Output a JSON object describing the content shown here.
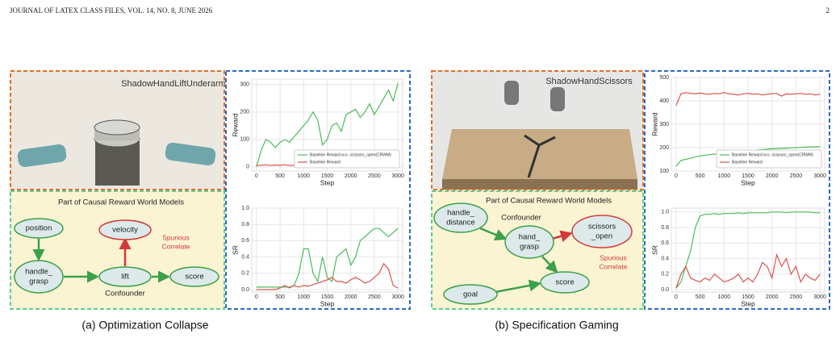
{
  "header": {
    "left": "JOURNAL OF LATEX CLASS FILES, VOL. 14, NO. 8, JUNE 2026",
    "page": "2"
  },
  "panels": [
    {
      "caption": "(a) Optimization Collapse",
      "image_title": "ShadowHandLiftUnderarm",
      "diagram": {
        "title": "Part of Causal Reward World Models",
        "nodes": [
          {
            "label": [
              "position"
            ]
          },
          {
            "label": [
              "velocity"
            ]
          },
          {
            "label": [
              "handle_",
              "grasp"
            ]
          },
          {
            "label": [
              "lift"
            ]
          },
          {
            "label": [
              "score"
            ]
          }
        ],
        "confounder": "Confounder",
        "spurious": [
          "Spurious",
          "Correlate"
        ]
      },
      "charts": [
        {
          "type": "line",
          "ylabel": "Reward",
          "xlabel": "Step",
          "grid": true,
          "legend": "lower right",
          "xlim": [
            -100,
            3100
          ],
          "ylim": [
            -15,
            320
          ],
          "xticks": [
            0,
            500,
            1000,
            1500,
            2000,
            2500,
            3000
          ],
          "yticks": [
            0,
            100,
            200,
            300
          ],
          "x": [
            0,
            100,
            200,
            300,
            400,
            500,
            600,
            700,
            800,
            900,
            1000,
            1100,
            1200,
            1300,
            1400,
            1500,
            1600,
            1700,
            1800,
            1900,
            2000,
            2100,
            2200,
            2300,
            2400,
            2500,
            2600,
            2700,
            2800,
            2900,
            3000
          ],
          "series": [
            {
              "name": "Baseline Reward w.o. scissors_open(CRWM)",
              "color": "#4cbb5a",
              "values": [
                0,
                60,
                100,
                90,
                70,
                90,
                100,
                90,
                110,
                130,
                150,
                170,
                200,
                170,
                80,
                100,
                150,
                160,
                130,
                190,
                200,
                210,
                180,
                200,
                230,
                190,
                220,
                250,
                280,
                240,
                305
              ]
            },
            {
              "name": "Baseline Reward",
              "color": "#d9534f",
              "values": [
                5,
                6,
                8,
                5,
                7,
                6,
                8,
                5,
                6,
                7,
                6,
                8,
                9,
                7,
                8,
                6,
                7,
                8,
                9,
                10,
                12,
                10,
                11,
                9,
                12,
                14,
                12,
                10,
                13,
                15,
                12
              ]
            }
          ]
        },
        {
          "type": "line",
          "ylabel": "SR",
          "xlabel": "Step",
          "grid": true,
          "xlim": [
            -100,
            3100
          ],
          "ylim": [
            -0.03,
            1.0
          ],
          "xticks": [
            0,
            500,
            1000,
            1500,
            2000,
            2500,
            3000
          ],
          "yticks": [
            {
              "value": 0,
              "label": "0.0"
            },
            0.2,
            0.4,
            0.6,
            0.8,
            {
              "value": 1,
              "label": "1.0"
            }
          ],
          "x": [
            0,
            100,
            200,
            300,
            400,
            500,
            600,
            700,
            800,
            900,
            1000,
            1100,
            1200,
            1300,
            1400,
            1500,
            1600,
            1700,
            1800,
            1900,
            2000,
            2100,
            2200,
            2300,
            2400,
            2500,
            2600,
            2700,
            2800,
            2900,
            3000
          ],
          "series": [
            {
              "name": "Baseline Reward w.o. scissors_open(CRWM)",
              "color": "#4cbb5a",
              "values": [
                0.03,
                0.03,
                0.03,
                0.03,
                0.03,
                0.03,
                0.03,
                0.03,
                0.05,
                0.2,
                0.5,
                0.5,
                0.2,
                0.1,
                0.4,
                0.15,
                0.1,
                0.4,
                0.45,
                0.5,
                0.3,
                0.4,
                0.6,
                0.65,
                0.7,
                0.75,
                0.75,
                0.7,
                0.65,
                0.7,
                0.75
              ]
            },
            {
              "name": "Baseline Reward",
              "color": "#d9534f",
              "values": [
                0,
                0,
                0,
                0,
                0,
                0.02,
                0.05,
                0.02,
                0.05,
                0.03,
                0.05,
                0.04,
                0.06,
                0.08,
                0.1,
                0.12,
                0.15,
                0.1,
                0.1,
                0.08,
                0.12,
                0.15,
                0.12,
                0.08,
                0.1,
                0.15,
                0.2,
                0.32,
                0.25,
                0.05,
                0.02
              ]
            }
          ]
        }
      ]
    },
    {
      "caption": "(b) Specification Gaming",
      "image_title": "ShadowHandScissors",
      "diagram": {
        "title": "Part of Causal Reward World Models",
        "nodes": [
          {
            "label": [
              "handle_",
              "distance"
            ]
          },
          {
            "label": [
              "hand_",
              "grasp"
            ]
          },
          {
            "label": [
              "scissors",
              "_open"
            ]
          },
          {
            "label": [
              "goal"
            ]
          },
          {
            "label": [
              "score"
            ]
          }
        ],
        "confounder": "Confounder",
        "spurious": [
          "Spurious",
          "Correlate"
        ]
      },
      "charts": [
        {
          "type": "line",
          "ylabel": "Reward",
          "xlabel": "Step",
          "grid": true,
          "legend": "lower right",
          "xlim": [
            -100,
            3100
          ],
          "ylim": [
            100,
            500
          ],
          "xticks": [
            0,
            500,
            1000,
            1500,
            2000,
            2500,
            3000
          ],
          "yticks": [
            100,
            200,
            300,
            400,
            500
          ],
          "x": [
            0,
            100,
            200,
            300,
            400,
            500,
            600,
            700,
            800,
            900,
            1000,
            1100,
            1200,
            1300,
            1400,
            1500,
            1600,
            1700,
            1800,
            1900,
            2000,
            2100,
            2200,
            2300,
            2400,
            2500,
            2600,
            2700,
            2800,
            2900,
            3000
          ],
          "series": [
            {
              "name": "Baseline Reward w.o. scissors_open(CRWM)",
              "color": "#4cbb5a",
              "values": [
                120,
                145,
                150,
                155,
                160,
                165,
                168,
                170,
                172,
                175,
                178,
                180,
                182,
                184,
                185,
                187,
                188,
                190,
                192,
                193,
                195,
                196,
                197,
                198,
                199,
                200,
                201,
                202,
                203,
                203,
                204
              ]
            },
            {
              "name": "Baseline Reward",
              "color": "#d9534f",
              "values": [
                380,
                430,
                435,
                432,
                430,
                433,
                430,
                428,
                432,
                430,
                435,
                430,
                428,
                425,
                430,
                432,
                428,
                430,
                425,
                428,
                430,
                432,
                420,
                430,
                428,
                430,
                432,
                428,
                430,
                425,
                428
              ]
            }
          ]
        },
        {
          "type": "line",
          "ylabel": "SR",
          "xlabel": "Step",
          "grid": true,
          "xlim": [
            -100,
            3100
          ],
          "ylim": [
            -0.03,
            1.05
          ],
          "xticks": [
            0,
            500,
            1000,
            1500,
            2000,
            2500,
            3000
          ],
          "yticks": [
            {
              "value": 0,
              "label": "0.0"
            },
            0.2,
            0.4,
            0.6,
            0.8,
            {
              "value": 1,
              "label": "1.0"
            }
          ],
          "x": [
            0,
            100,
            200,
            300,
            400,
            500,
            600,
            700,
            800,
            900,
            1000,
            1100,
            1200,
            1300,
            1400,
            1500,
            1600,
            1700,
            1800,
            1900,
            2000,
            2100,
            2200,
            2300,
            2400,
            2500,
            2600,
            2700,
            2800,
            2900,
            3000
          ],
          "series": [
            {
              "name": "Baseline Reward w.o. scissors_open(CRWM)",
              "color": "#4cbb5a",
              "values": [
                0.02,
                0.1,
                0.3,
                0.5,
                0.8,
                0.95,
                0.97,
                0.97,
                0.98,
                0.97,
                0.98,
                0.98,
                0.98,
                0.99,
                0.98,
                0.99,
                0.99,
                0.99,
                0.99,
                0.99,
                1.0,
                1.0,
                1.0,
                0.99,
                1.0,
                1.0,
                1.0,
                1.0,
                1.0,
                0.99,
                0.99
              ]
            },
            {
              "name": "Baseline Reward",
              "color": "#d9534f",
              "values": [
                0.02,
                0.2,
                0.3,
                0.15,
                0.12,
                0.1,
                0.15,
                0.12,
                0.2,
                0.15,
                0.1,
                0.12,
                0.15,
                0.2,
                0.1,
                0.15,
                0.1,
                0.2,
                0.35,
                0.3,
                0.15,
                0.45,
                0.3,
                0.4,
                0.2,
                0.3,
                0.1,
                0.2,
                0.15,
                0.12,
                0.2
              ]
            }
          ]
        }
      ]
    }
  ]
}
